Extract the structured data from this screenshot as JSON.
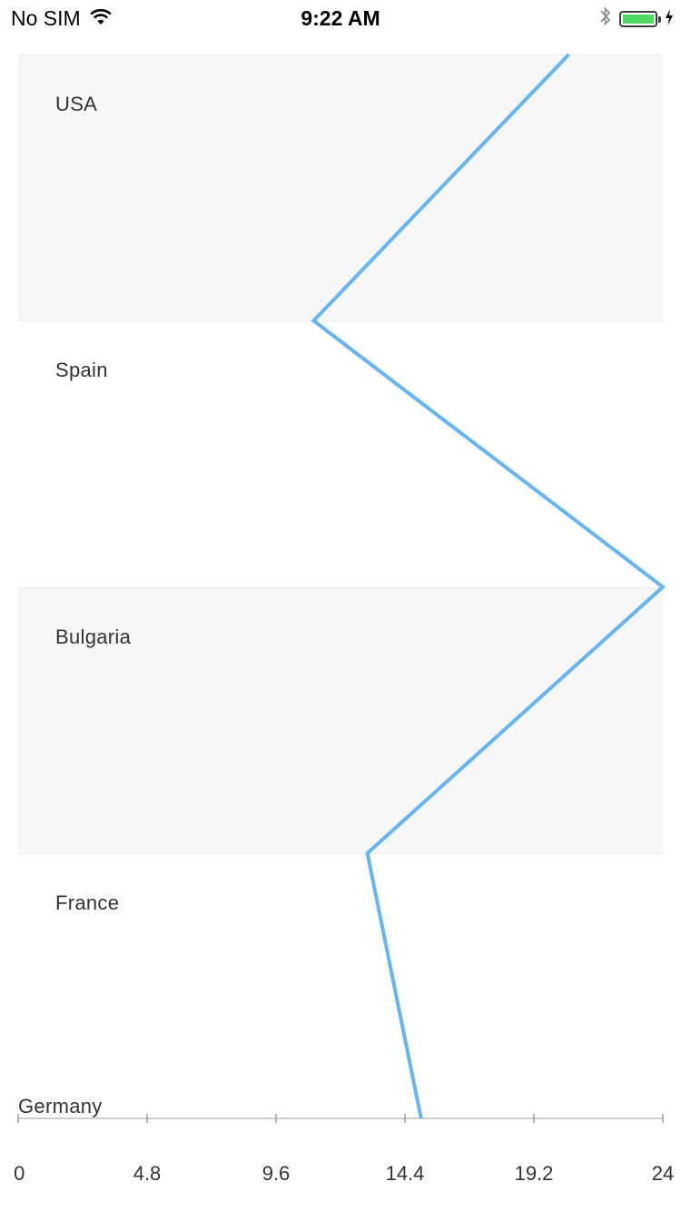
{
  "status_bar": {
    "carrier": "No SIM",
    "time": "9:22 AM",
    "battery_level": 1.0,
    "battery_color": "#4cd964"
  },
  "chart_data": {
    "type": "line",
    "orientation": "vertical-categories",
    "categories": [
      "USA",
      "Spain",
      "Bulgaria",
      "France",
      "Germany"
    ],
    "values": [
      20.5,
      11,
      24,
      13,
      15
    ],
    "series_color": "#64b5f6",
    "xlim": [
      0,
      24
    ],
    "x_ticks": [
      "0",
      "4.8",
      "9.6",
      "14.4",
      "19.2",
      "24"
    ],
    "band_colors": [
      "#f7f7f7",
      "#ffffff"
    ],
    "grid": false
  }
}
